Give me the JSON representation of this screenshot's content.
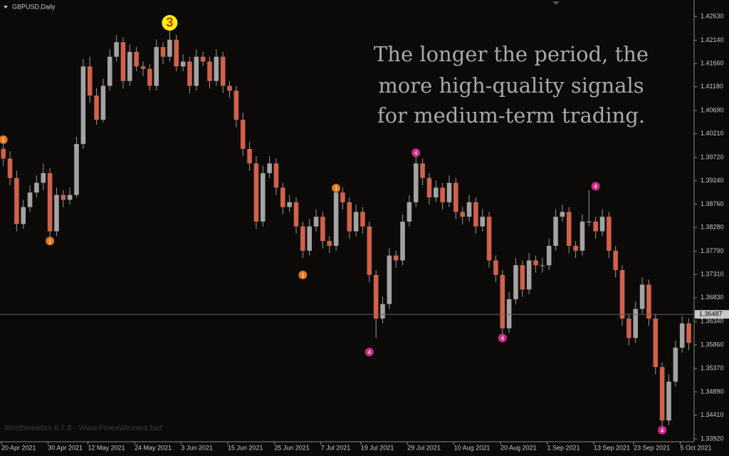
{
  "chart_data": {
    "type": "candlestick",
    "title": "GBPUSD,Daily",
    "annotations": [
      "The longer the period, the",
      "more high-quality signals",
      "for medium-term trading."
    ],
    "footer": "Worthematics 6.7.8 - Www.ForexWinners.Net",
    "bull_color": "#a3a3a3",
    "bear_color": "#d2614b",
    "ylim": [
      1.3386,
      1.4297
    ],
    "yticks": [
      {
        "value": 1.4263,
        "label": "1.42630"
      },
      {
        "value": 1.4214,
        "label": "1.42140"
      },
      {
        "value": 1.4166,
        "label": "1.41660"
      },
      {
        "value": 1.4118,
        "label": "1.41180"
      },
      {
        "value": 1.4069,
        "label": "1.40690"
      },
      {
        "value": 1.4021,
        "label": "1.40210"
      },
      {
        "value": 1.3972,
        "label": "1.39720"
      },
      {
        "value": 1.3924,
        "label": "1.39240"
      },
      {
        "value": 1.3876,
        "label": "1.38760"
      },
      {
        "value": 1.3828,
        "label": "1.38280"
      },
      {
        "value": 1.3779,
        "label": "1.37790"
      },
      {
        "value": 1.3731,
        "label": "1.37310"
      },
      {
        "value": 1.3683,
        "label": "1.36830"
      },
      {
        "value": 1.3634,
        "label": "1.36340"
      },
      {
        "value": 1.3586,
        "label": "1.35860"
      },
      {
        "value": 1.3537,
        "label": "1.35370"
      },
      {
        "value": 1.3489,
        "label": "1.34890"
      },
      {
        "value": 1.3441,
        "label": "1.34410"
      },
      {
        "value": 1.3392,
        "label": "1.33920"
      }
    ],
    "xticks": [
      {
        "value": 0,
        "label": "20 Apr 2021"
      },
      {
        "value": 7,
        "label": "30 Apr 2021"
      },
      {
        "value": 13,
        "label": "12 May 2021"
      },
      {
        "value": 20,
        "label": "24 May 2021"
      },
      {
        "value": 27,
        "label": "3 Jun 2021"
      },
      {
        "value": 34,
        "label": "15 Jun 2021"
      },
      {
        "value": 41,
        "label": "25 Jun 2021"
      },
      {
        "value": 48,
        "label": "7 Jul 2021"
      },
      {
        "value": 54,
        "label": "19 Jul 2021"
      },
      {
        "value": 61,
        "label": "29 Jul 2021"
      },
      {
        "value": 68,
        "label": "10 Aug 2021"
      },
      {
        "value": 75,
        "label": "20 Aug 2021"
      },
      {
        "value": 82,
        "label": "1 Sep 2021"
      },
      {
        "value": 89,
        "label": "13 Sep 2021"
      },
      {
        "value": 95,
        "label": "23 Sep 2021"
      },
      {
        "value": 102,
        "label": "5 Oct 2021"
      }
    ],
    "current_price": 1.36487,
    "signals": [
      {
        "index": 0,
        "price": 1.4009,
        "label": "1",
        "color": "#e0761f"
      },
      {
        "index": 7,
        "price": 1.38,
        "label": "1",
        "color": "#e0761f"
      },
      {
        "index": 45,
        "price": 1.373,
        "label": "1",
        "color": "#e0761f"
      },
      {
        "index": 50,
        "price": 1.3909,
        "label": "1",
        "color": "#e0761f"
      },
      {
        "index": 25,
        "price": 1.425,
        "label": "3",
        "color": "#ffee00"
      },
      {
        "index": 55,
        "price": 1.3571,
        "label": "4",
        "color": "#d0288a"
      },
      {
        "index": 62,
        "price": 1.3982,
        "label": "4",
        "color": "#d0288a"
      },
      {
        "index": 75,
        "price": 1.36,
        "label": "4",
        "color": "#d0288a"
      },
      {
        "index": 89,
        "price": 1.3913,
        "label": "4",
        "color": "#d0288a"
      },
      {
        "index": 99,
        "price": 1.341,
        "label": "4",
        "color": "#d0288a"
      }
    ],
    "candles": [
      [
        1.399,
        1.4005,
        1.3955,
        1.397
      ],
      [
        1.397,
        1.3985,
        1.3915,
        1.393
      ],
      [
        1.393,
        1.3945,
        1.382,
        1.3835
      ],
      [
        1.3835,
        1.3885,
        1.3825,
        1.387
      ],
      [
        1.387,
        1.3915,
        1.386,
        1.39
      ],
      [
        1.39,
        1.3935,
        1.389,
        1.392
      ],
      [
        1.392,
        1.396,
        1.3905,
        1.394
      ],
      [
        1.394,
        1.395,
        1.3805,
        1.382
      ],
      [
        1.382,
        1.391,
        1.381,
        1.3895
      ],
      [
        1.3895,
        1.3905,
        1.387,
        1.3885
      ],
      [
        1.3885,
        1.391,
        1.3875,
        1.3895
      ],
      [
        1.3895,
        1.4015,
        1.389,
        1.4
      ],
      [
        1.4,
        1.4175,
        1.399,
        1.416
      ],
      [
        1.416,
        1.418,
        1.4085,
        1.41
      ],
      [
        1.41,
        1.4115,
        1.404,
        1.405
      ],
      [
        1.405,
        1.4135,
        1.4045,
        1.412
      ],
      [
        1.412,
        1.4195,
        1.411,
        1.418
      ],
      [
        1.418,
        1.4225,
        1.417,
        1.421
      ],
      [
        1.421,
        1.422,
        1.4115,
        1.413
      ],
      [
        1.413,
        1.4205,
        1.412,
        1.419
      ],
      [
        1.419,
        1.42,
        1.415,
        1.416
      ],
      [
        1.416,
        1.417,
        1.414,
        1.4155
      ],
      [
        1.4155,
        1.4165,
        1.411,
        1.412
      ],
      [
        1.412,
        1.4215,
        1.411,
        1.42
      ],
      [
        1.42,
        1.421,
        1.4165,
        1.418
      ],
      [
        1.418,
        1.4245,
        1.417,
        1.4215
      ],
      [
        1.4215,
        1.4225,
        1.415,
        1.416
      ],
      [
        1.416,
        1.4185,
        1.415,
        1.417
      ],
      [
        1.417,
        1.418,
        1.4105,
        1.412
      ],
      [
        1.412,
        1.4195,
        1.411,
        1.418
      ],
      [
        1.418,
        1.419,
        1.416,
        1.417
      ],
      [
        1.417,
        1.418,
        1.4115,
        1.413
      ],
      [
        1.413,
        1.4195,
        1.412,
        1.418
      ],
      [
        1.418,
        1.419,
        1.4105,
        1.412
      ],
      [
        1.412,
        1.413,
        1.4095,
        1.411
      ],
      [
        1.411,
        1.412,
        1.4035,
        1.405
      ],
      [
        1.405,
        1.4065,
        1.3975,
        1.399
      ],
      [
        1.399,
        1.4005,
        1.3945,
        1.396
      ],
      [
        1.396,
        1.3975,
        1.3825,
        1.384
      ],
      [
        1.384,
        1.3955,
        1.383,
        1.394
      ],
      [
        1.394,
        1.3975,
        1.393,
        1.396
      ],
      [
        1.396,
        1.397,
        1.3895,
        1.391
      ],
      [
        1.391,
        1.392,
        1.3855,
        1.387
      ],
      [
        1.387,
        1.3895,
        1.386,
        1.388
      ],
      [
        1.388,
        1.389,
        1.3815,
        1.383
      ],
      [
        1.383,
        1.384,
        1.3765,
        1.378
      ],
      [
        1.378,
        1.3845,
        1.377,
        1.383
      ],
      [
        1.383,
        1.3865,
        1.382,
        1.385
      ],
      [
        1.385,
        1.386,
        1.3785,
        1.38
      ],
      [
        1.38,
        1.381,
        1.3775,
        1.379
      ],
      [
        1.379,
        1.3915,
        1.378,
        1.39
      ],
      [
        1.39,
        1.391,
        1.3865,
        1.388
      ],
      [
        1.388,
        1.389,
        1.3805,
        1.382
      ],
      [
        1.382,
        1.3875,
        1.381,
        1.386
      ],
      [
        1.386,
        1.387,
        1.3815,
        1.383
      ],
      [
        1.383,
        1.384,
        1.3715,
        1.373
      ],
      [
        1.373,
        1.374,
        1.36,
        1.364
      ],
      [
        1.364,
        1.3685,
        1.363,
        1.367
      ],
      [
        1.367,
        1.3785,
        1.366,
        1.377
      ],
      [
        1.377,
        1.378,
        1.3745,
        1.376
      ],
      [
        1.376,
        1.3855,
        1.375,
        1.384
      ],
      [
        1.384,
        1.3895,
        1.383,
        1.388
      ],
      [
        1.388,
        1.3975,
        1.387,
        1.396
      ],
      [
        1.396,
        1.397,
        1.3915,
        1.393
      ],
      [
        1.393,
        1.394,
        1.3875,
        1.389
      ],
      [
        1.389,
        1.3925,
        1.388,
        1.391
      ],
      [
        1.391,
        1.392,
        1.3865,
        1.388
      ],
      [
        1.388,
        1.3935,
        1.387,
        1.392
      ],
      [
        1.392,
        1.393,
        1.3845,
        1.386
      ],
      [
        1.386,
        1.387,
        1.3835,
        1.385
      ],
      [
        1.385,
        1.3895,
        1.384,
        1.388
      ],
      [
        1.388,
        1.389,
        1.3815,
        1.383
      ],
      [
        1.383,
        1.3865,
        1.382,
        1.385
      ],
      [
        1.385,
        1.386,
        1.3745,
        1.376
      ],
      [
        1.376,
        1.377,
        1.3715,
        1.373
      ],
      [
        1.373,
        1.374,
        1.3605,
        1.362
      ],
      [
        1.362,
        1.3695,
        1.361,
        1.368
      ],
      [
        1.368,
        1.3765,
        1.367,
        1.375
      ],
      [
        1.375,
        1.376,
        1.3685,
        1.37
      ],
      [
        1.37,
        1.3775,
        1.369,
        1.376
      ],
      [
        1.376,
        1.377,
        1.3735,
        1.375
      ],
      [
        1.375,
        1.3765,
        1.3735,
        1.375
      ],
      [
        1.375,
        1.3805,
        1.374,
        1.379
      ],
      [
        1.379,
        1.3865,
        1.378,
        1.385
      ],
      [
        1.385,
        1.3875,
        1.384,
        1.386
      ],
      [
        1.386,
        1.387,
        1.3775,
        1.379
      ],
      [
        1.379,
        1.38,
        1.3765,
        1.378
      ],
      [
        1.378,
        1.3855,
        1.377,
        1.384
      ],
      [
        1.384,
        1.3905,
        1.383,
        1.384
      ],
      [
        1.384,
        1.385,
        1.3805,
        1.382
      ],
      [
        1.382,
        1.3865,
        1.381,
        1.385
      ],
      [
        1.385,
        1.386,
        1.3765,
        1.378
      ],
      [
        1.378,
        1.379,
        1.3725,
        1.374
      ],
      [
        1.374,
        1.375,
        1.3625,
        1.364
      ],
      [
        1.364,
        1.365,
        1.3585,
        1.36
      ],
      [
        1.36,
        1.3675,
        1.359,
        1.366
      ],
      [
        1.366,
        1.3725,
        1.365,
        1.371
      ],
      [
        1.371,
        1.372,
        1.3625,
        1.364
      ],
      [
        1.364,
        1.365,
        1.3525,
        1.354
      ],
      [
        1.354,
        1.355,
        1.3415,
        1.343
      ],
      [
        1.343,
        1.3525,
        1.342,
        1.351
      ],
      [
        1.351,
        1.3595,
        1.35,
        1.358
      ],
      [
        1.358,
        1.3645,
        1.357,
        1.363
      ],
      [
        1.363,
        1.364,
        1.3575,
        1.359
      ]
    ]
  }
}
